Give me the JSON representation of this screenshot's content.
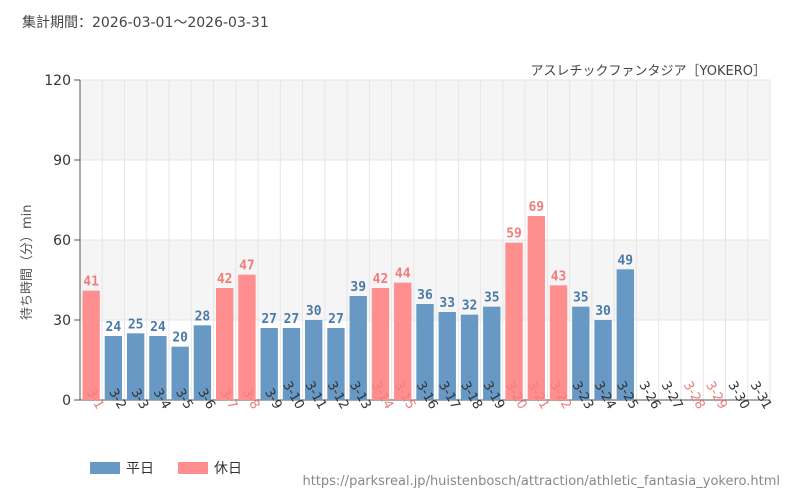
{
  "period_label": "集計期間：2026-03-01～2026-03-31",
  "legend": {
    "weekday_label": "平日",
    "holiday_label": "休日"
  },
  "source_url": "https://parksreal.jp/huistenbosch/attraction/athletic_fantasia_yokero.html",
  "colors": {
    "weekday": "#6899c5",
    "holiday": "#ff8f8f",
    "weekday_text": "#4b7aa8",
    "holiday_text": "#f07c7c",
    "plot_band": "#f5f5f5",
    "grid": "#e6e6e6",
    "axis": "#555555"
  },
  "chart_data": {
    "type": "bar",
    "title": "アスレチックファンタジア［YOKERO］",
    "ylabel": "待ち時間（分）min",
    "xlabel": "",
    "ylim": [
      0,
      120
    ],
    "yticks": [
      0,
      30,
      60,
      90,
      120
    ],
    "grid": true,
    "legend_position": "bottom-left",
    "categories": [
      "3-1",
      "3-2",
      "3-3",
      "3-4",
      "3-5",
      "3-6",
      "3-7",
      "3-8",
      "3-9",
      "3-10",
      "3-11",
      "3-12",
      "3-13",
      "3-14",
      "3-15",
      "3-16",
      "3-17",
      "3-18",
      "3-19",
      "3-20",
      "3-21",
      "3-22",
      "3-23",
      "3-24",
      "3-25",
      "3-26",
      "3-27",
      "3-28",
      "3-29",
      "3-30",
      "3-31"
    ],
    "values": [
      41,
      24,
      25,
      24,
      20,
      28,
      42,
      47,
      27,
      27,
      30,
      27,
      39,
      42,
      44,
      36,
      33,
      32,
      35,
      59,
      69,
      43,
      35,
      30,
      49,
      null,
      null,
      null,
      null,
      null,
      null
    ],
    "day_type": [
      "holiday",
      "weekday",
      "weekday",
      "weekday",
      "weekday",
      "weekday",
      "holiday",
      "holiday",
      "weekday",
      "weekday",
      "weekday",
      "weekday",
      "weekday",
      "holiday",
      "holiday",
      "weekday",
      "weekday",
      "weekday",
      "weekday",
      "holiday",
      "holiday",
      "holiday",
      "weekday",
      "weekday",
      "weekday",
      "weekday",
      "weekday",
      "holiday",
      "holiday",
      "weekday",
      "weekday"
    ]
  }
}
